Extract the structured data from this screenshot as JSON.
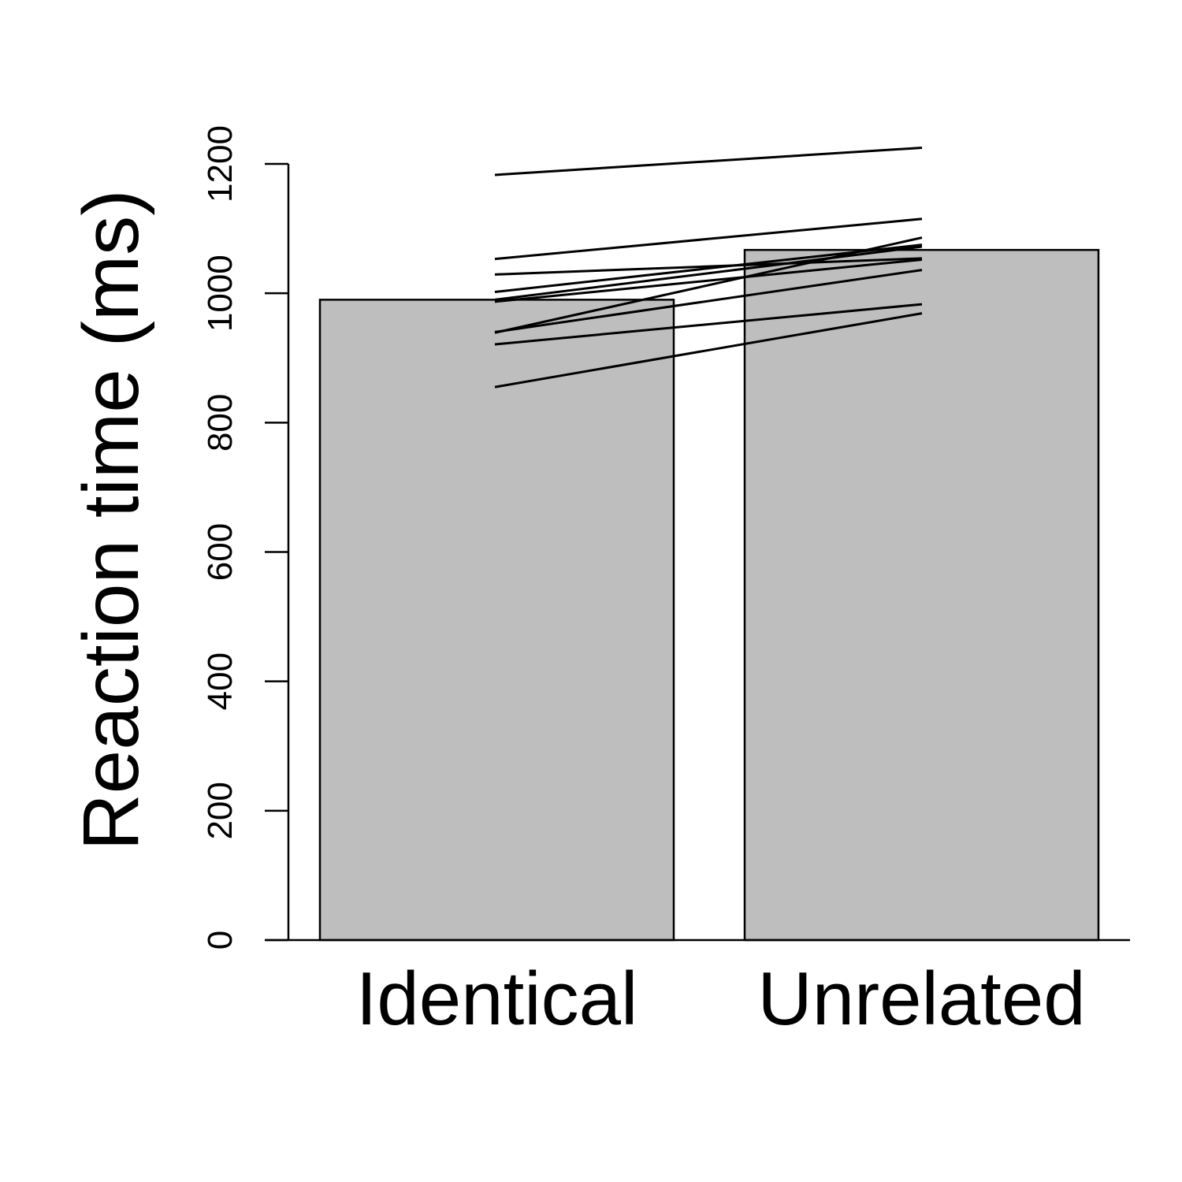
{
  "chart_data": {
    "type": "bar",
    "categories": [
      "Identical",
      "Unrelated"
    ],
    "values": [
      990,
      1067
    ],
    "xlabel": "",
    "ylabel": "Reaction time (ms)",
    "ylim": [
      0,
      1200
    ],
    "yticks": [
      0,
      200,
      400,
      600,
      800,
      1000,
      1200
    ],
    "ytick_labels": [
      "0",
      "200",
      "400",
      "600",
      "800",
      "1000",
      "1200"
    ],
    "grid": false,
    "colors": {
      "bar_fill": "#bebebe",
      "stroke": "#000000"
    },
    "paired_lines": [
      {
        "identical": 1183,
        "unrelated": 1225
      },
      {
        "identical": 1053,
        "unrelated": 1115
      },
      {
        "identical": 1029,
        "unrelated": 1054
      },
      {
        "identical": 1002,
        "unrelated": 1075
      },
      {
        "identical": 990,
        "unrelated": 1072
      },
      {
        "identical": 987,
        "unrelated": 1052
      },
      {
        "identical": 939,
        "unrelated": 1086
      },
      {
        "identical": 940,
        "unrelated": 1036
      },
      {
        "identical": 921,
        "unrelated": 983
      },
      {
        "identical": 855,
        "unrelated": 969
      }
    ]
  }
}
